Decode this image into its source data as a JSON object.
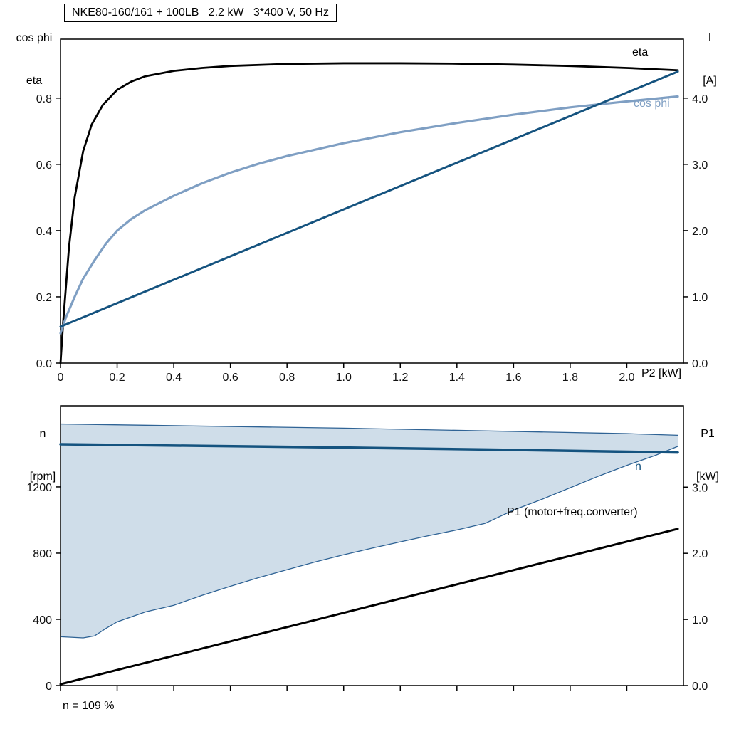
{
  "header": {
    "title": "NKE80-160/161 + 100LB   2.2 kW   3*400 V, 50 Hz"
  },
  "annotation": "n = 109 %",
  "colors": {
    "eta": "#000000",
    "cos_phi": "#7f9fc3",
    "current": "#15537f",
    "speed": "#15537f",
    "p1": "#000000",
    "band_fill": "#cfdde9",
    "band_edge": "#2f6395",
    "frame": "#000000"
  },
  "chart_data": [
    {
      "type": "line",
      "title": "NKE80-160/161 + 100LB   2.2 kW   3*400 V, 50 Hz",
      "grid": false,
      "x_axis": {
        "label": "P2 [kW]",
        "min": 0,
        "max": 2.2,
        "ticks": [
          0,
          0.2,
          0.4,
          0.6,
          0.8,
          1.0,
          1.2,
          1.4,
          1.6,
          1.8,
          2.0
        ],
        "tick_labels": [
          "0",
          "0.2",
          "0.4",
          "0.6",
          "0.8",
          "1.0",
          "1.2",
          "1.4",
          "1.6",
          "1.8",
          "2.0"
        ]
      },
      "y_left": {
        "label_lines": [
          "cos phi",
          "eta"
        ],
        "min": 0,
        "max": 0.978,
        "ticks": [
          0,
          0.2,
          0.4,
          0.6,
          0.8
        ],
        "tick_labels": [
          "0.0",
          "0.2",
          "0.4",
          "0.6",
          "0.8"
        ]
      },
      "y_right": {
        "label_lines": [
          "I",
          "[A]"
        ],
        "min": 0,
        "max": 4.89,
        "ticks": [
          0,
          1,
          2,
          3,
          4
        ],
        "tick_labels": [
          "0.0",
          "1.0",
          "2.0",
          "3.0",
          "4.0"
        ]
      },
      "series": [
        {
          "name": "eta",
          "axis": "left",
          "color": "#000000",
          "width": 2.8,
          "x": [
            0,
            0.01,
            0.03,
            0.05,
            0.08,
            0.11,
            0.15,
            0.2,
            0.25,
            0.3,
            0.4,
            0.5,
            0.6,
            0.8,
            1.0,
            1.2,
            1.4,
            1.6,
            1.8,
            2.0,
            2.18
          ],
          "y": [
            0,
            0.13,
            0.35,
            0.5,
            0.64,
            0.72,
            0.78,
            0.825,
            0.85,
            0.866,
            0.882,
            0.891,
            0.897,
            0.903,
            0.905,
            0.905,
            0.904,
            0.901,
            0.897,
            0.891,
            0.884
          ]
        },
        {
          "name": "cos phi",
          "axis": "left",
          "color": "#7f9fc3",
          "width": 3.2,
          "x": [
            0,
            0.02,
            0.05,
            0.08,
            0.12,
            0.16,
            0.2,
            0.25,
            0.3,
            0.4,
            0.5,
            0.6,
            0.7,
            0.8,
            1.0,
            1.2,
            1.4,
            1.6,
            1.8,
            2.0,
            2.18
          ],
          "y": [
            0.09,
            0.14,
            0.2,
            0.255,
            0.31,
            0.36,
            0.4,
            0.435,
            0.462,
            0.505,
            0.543,
            0.575,
            0.602,
            0.625,
            0.664,
            0.697,
            0.725,
            0.75,
            0.772,
            0.79,
            0.805
          ]
        },
        {
          "name": "I",
          "axis": "right",
          "color": "#15537f",
          "width": 3,
          "x": [
            0,
            1.0,
            2.18
          ],
          "y": [
            0.55,
            2.32,
            4.4
          ]
        }
      ]
    },
    {
      "type": "line",
      "title": "",
      "grid": false,
      "x_axis": {
        "label": "",
        "min": 0,
        "max": 2.2,
        "ticks": [
          0,
          0.2,
          0.4,
          0.6,
          0.8,
          1.0,
          1.2,
          1.4,
          1.6,
          1.8,
          2.0
        ],
        "tick_labels": []
      },
      "y_left": {
        "label_lines": [
          "n",
          "[rpm]"
        ],
        "min": 0,
        "max": 1690,
        "ticks": [
          0,
          400,
          800,
          1200
        ],
        "tick_labels": [
          "0",
          "400",
          "800",
          "1200"
        ]
      },
      "y_right": {
        "label_lines": [
          "P1",
          "[kW]"
        ],
        "min": 0,
        "max": 4.23,
        "ticks": [
          0,
          1,
          2,
          3
        ],
        "tick_labels": [
          "0.0",
          "1.0",
          "2.0",
          "3.0"
        ]
      },
      "band": {
        "name": "speed-control-range",
        "fill": "#cfdde9",
        "edge": "#2f6395",
        "upper": {
          "x": [
            0,
            1.0,
            2.0,
            2.18
          ],
          "y": [
            1580,
            1555,
            1522,
            1512
          ]
        },
        "lower": {
          "x": [
            0,
            0.08,
            0.12,
            0.16,
            0.2,
            0.3,
            0.4,
            0.5,
            0.6,
            0.7,
            0.8,
            0.9,
            1.0,
            1.1,
            1.2,
            1.3,
            1.4,
            1.5,
            1.6,
            1.7,
            1.8,
            1.9,
            2.0,
            2.1,
            2.18
          ],
          "y": [
            295,
            288,
            300,
            345,
            385,
            445,
            485,
            545,
            600,
            652,
            700,
            747,
            790,
            830,
            868,
            905,
            940,
            980,
            1060,
            1125,
            1195,
            1265,
            1330,
            1390,
            1445
          ]
        }
      },
      "series": [
        {
          "name": "n",
          "axis": "left",
          "color": "#15537f",
          "width": 3.5,
          "x": [
            0,
            0.5,
            1.0,
            1.5,
            2.18
          ],
          "y": [
            1458,
            1448,
            1438,
            1426,
            1408
          ]
        },
        {
          "name": "P1 (motor+freq.converter)",
          "axis": "right",
          "color": "#000000",
          "width": 3,
          "x": [
            0,
            1.0,
            2.18
          ],
          "y": [
            0.02,
            1.1,
            2.37
          ]
        }
      ]
    }
  ]
}
